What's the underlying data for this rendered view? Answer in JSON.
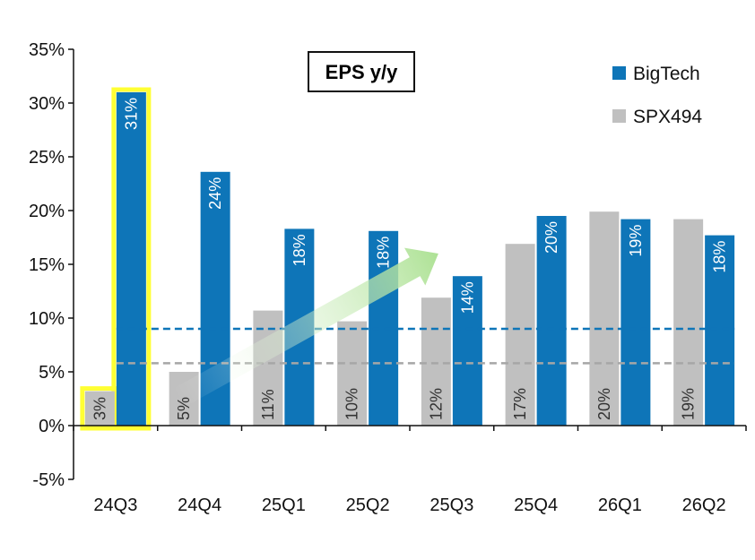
{
  "chart_data": {
    "type": "bar",
    "title": "EPS y/y",
    "categories": [
      "24Q3",
      "24Q4",
      "25Q1",
      "25Q2",
      "25Q3",
      "25Q4",
      "26Q1",
      "26Q2"
    ],
    "series": [
      {
        "name": "SPX494",
        "color": "#c0c0c0",
        "label_color": "#333333",
        "values": [
          3.2,
          5.0,
          10.7,
          9.7,
          11.9,
          16.9,
          19.9,
          19.2
        ],
        "labels": [
          "3%",
          "5%",
          "11%",
          "10%",
          "12%",
          "17%",
          "20%",
          "19%"
        ]
      },
      {
        "name": "BigTech",
        "color": "#0e75b8",
        "label_color": "#ffffff",
        "values": [
          31.0,
          23.6,
          18.3,
          18.1,
          13.9,
          19.5,
          19.2,
          17.7
        ],
        "labels": [
          "31%",
          "24%",
          "18%",
          "18%",
          "14%",
          "20%",
          "19%",
          "18%"
        ]
      }
    ],
    "y_ticks": [
      "-5%",
      "0%",
      "5%",
      "10%",
      "15%",
      "20%",
      "25%",
      "30%",
      "35%"
    ],
    "ylim": [
      -5,
      35
    ],
    "reference_lines": [
      {
        "value": 9.0,
        "color": "#0e75b8",
        "style": "dashed"
      },
      {
        "value": 5.8,
        "color": "#a6a6a6",
        "style": "dashed"
      }
    ],
    "highlight": {
      "category": "24Q3",
      "color": "#ffff33"
    },
    "trend_arrow": {
      "from_category": "24Q4",
      "to_category": "25Q3",
      "from_value": 2.5,
      "to_value": 16.0,
      "color": "#a9e08f"
    },
    "legend_position": "top-right",
    "grid": false
  }
}
